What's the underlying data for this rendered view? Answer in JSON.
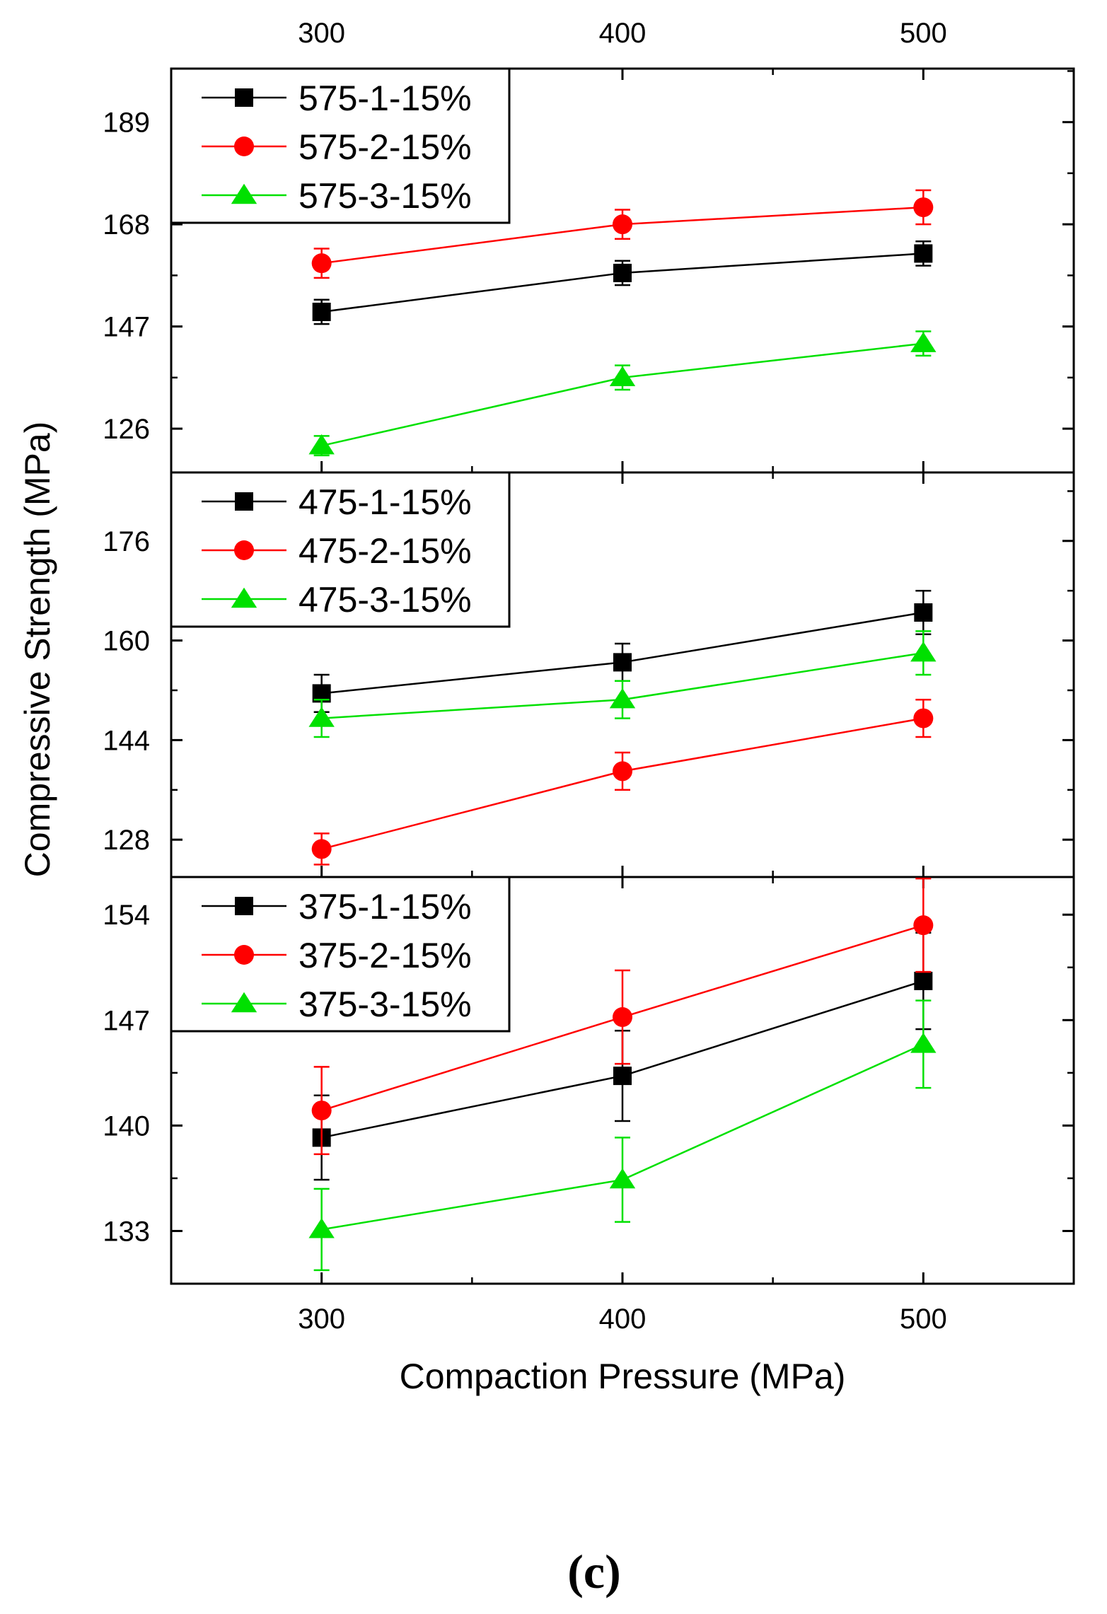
{
  "figure_label": "(c)",
  "colors": {
    "black": "#000000",
    "red": "#ff0000",
    "green": "#00e000"
  },
  "chart_data": {
    "type": "line",
    "x": [
      300,
      400,
      500
    ],
    "xlabel": "Compaction Pressure (MPa)",
    "ylabel": "Compressive Strength (MPa)",
    "xlim": [
      250,
      550
    ],
    "x_ticks": [
      300,
      400,
      500
    ],
    "panels": [
      {
        "name": "575",
        "ylim": [
          117,
          200
        ],
        "y_ticks": [
          126,
          147,
          168,
          189
        ],
        "series": [
          {
            "name": "575-1-15%",
            "marker": "square",
            "color": "#000000",
            "values": [
              150,
              158,
              162
            ],
            "errors": [
              2.5,
              2.5,
              2.5
            ]
          },
          {
            "name": "575-2-15%",
            "marker": "circle",
            "color": "#ff0000",
            "values": [
              160,
              168,
              171.5
            ],
            "errors": [
              3,
              3,
              3.5
            ]
          },
          {
            "name": "575-3-15%",
            "marker": "triangle",
            "color": "#00e000",
            "values": [
              122.5,
              136.5,
              143.5
            ],
            "errors": [
              2,
              2.5,
              2.5
            ]
          }
        ]
      },
      {
        "name": "475",
        "ylim": [
          122,
          187
        ],
        "y_ticks": [
          128,
          144,
          160,
          176
        ],
        "series": [
          {
            "name": "475-1-15%",
            "marker": "square",
            "color": "#000000",
            "values": [
              151.5,
              156.5,
              164.5
            ],
            "errors": [
              3,
              3,
              3.5
            ]
          },
          {
            "name": "475-2-15%",
            "marker": "circle",
            "color": "#ff0000",
            "values": [
              126.5,
              139,
              147.5
            ],
            "errors": [
              2.5,
              3,
              3
            ]
          },
          {
            "name": "475-3-15%",
            "marker": "triangle",
            "color": "#00e000",
            "values": [
              147.5,
              150.5,
              158
            ],
            "errors": [
              3,
              3,
              3.5
            ]
          }
        ]
      },
      {
        "name": "375",
        "ylim": [
          129.5,
          156.5
        ],
        "y_ticks": [
          133,
          140,
          147,
          154
        ],
        "series": [
          {
            "name": "375-1-15%",
            "marker": "square",
            "color": "#000000",
            "values": [
              139.2,
              143.3,
              149.6
            ],
            "errors": [
              2.8,
              3,
              3.2
            ]
          },
          {
            "name": "375-2-15%",
            "marker": "circle",
            "color": "#ff0000",
            "values": [
              141,
              147.2,
              153.3
            ],
            "errors": [
              2.9,
              3.1,
              3.1
            ]
          },
          {
            "name": "375-3-15%",
            "marker": "triangle",
            "color": "#00e000",
            "values": [
              133.1,
              136.4,
              145.4
            ],
            "errors": [
              2.7,
              2.8,
              2.9
            ]
          }
        ]
      }
    ]
  }
}
